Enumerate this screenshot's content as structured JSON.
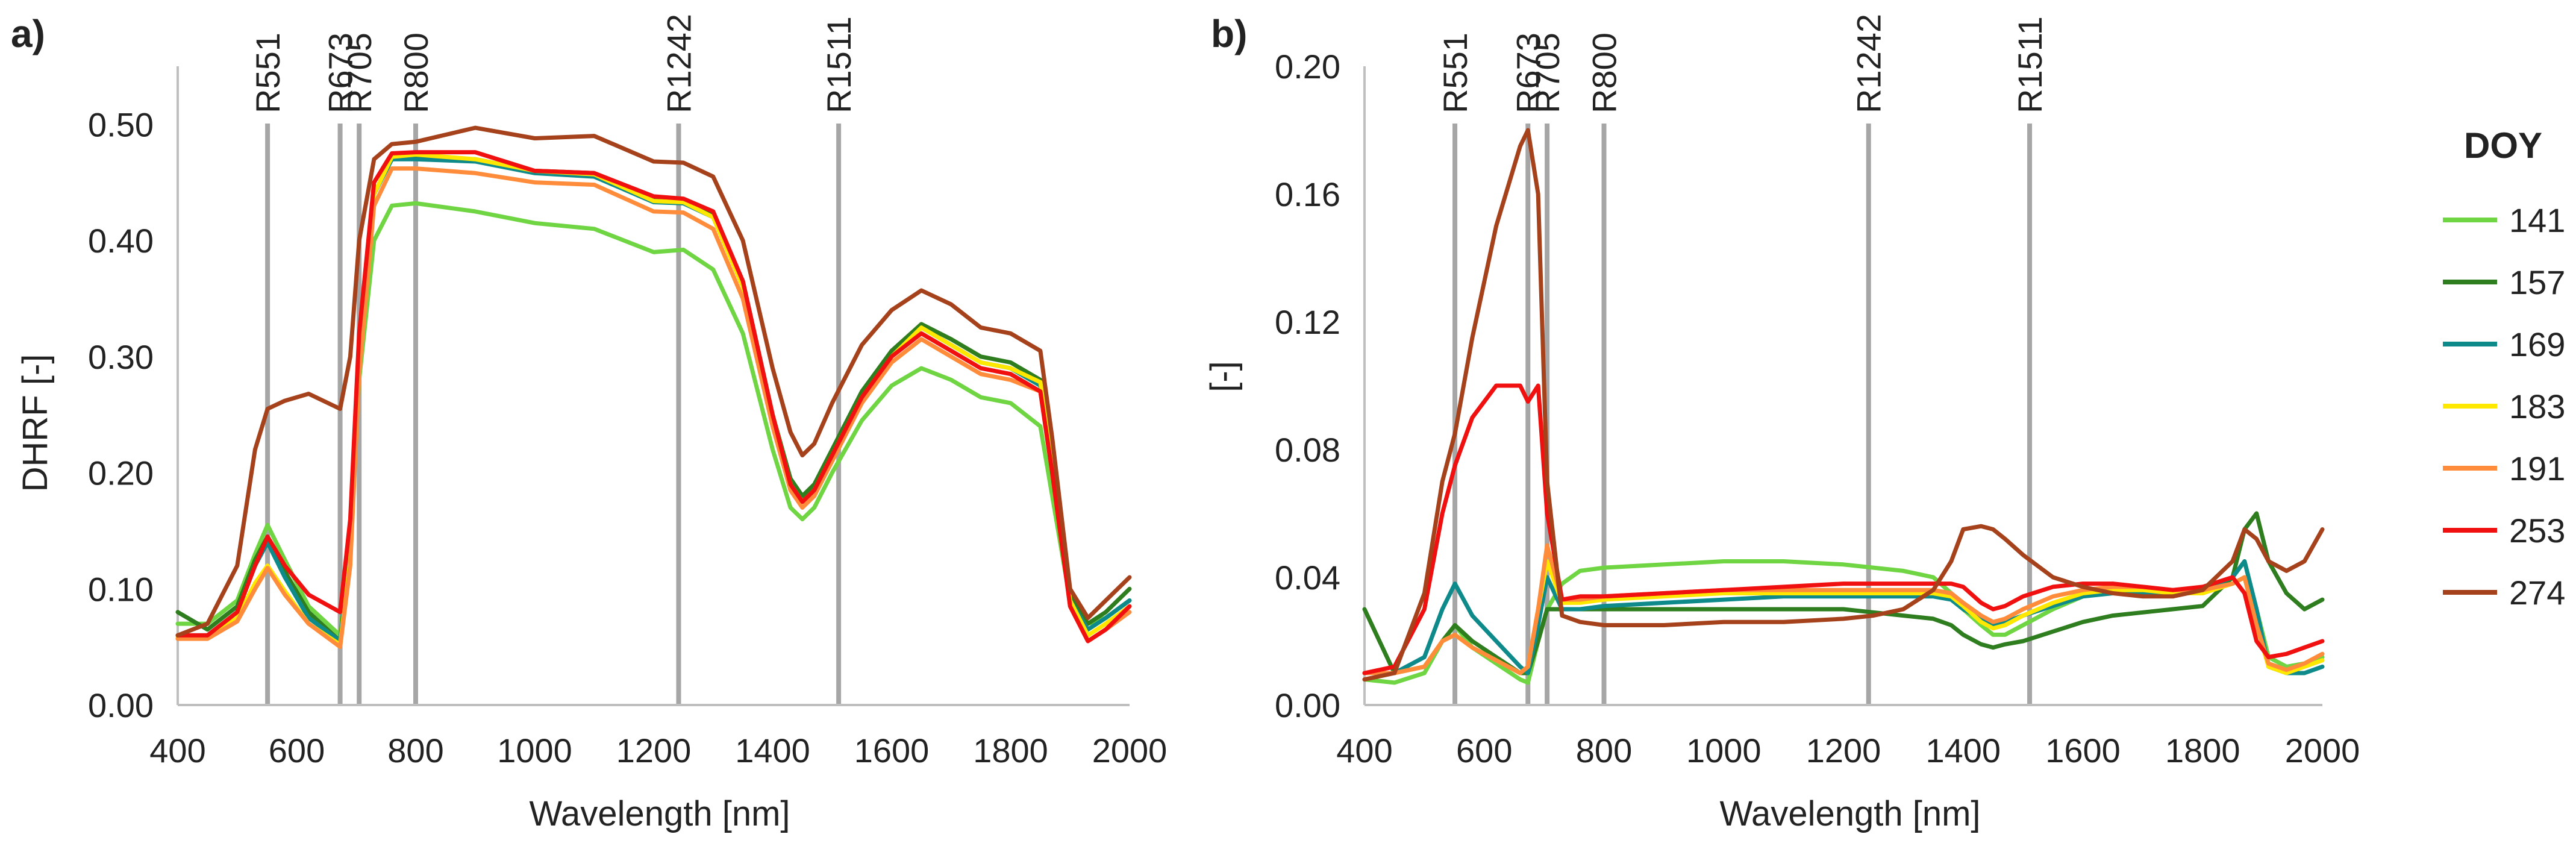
{
  "chart_data": [
    {
      "panel_label": "a)",
      "type": "line",
      "xlabel": "Wavelength [nm]",
      "ylabel": "DHRF [-]",
      "xlim": [
        400,
        2000
      ],
      "ylim": [
        0,
        0.55
      ],
      "x_ticks": [
        "400",
        "600",
        "800",
        "1000",
        "1200",
        "1400",
        "1600",
        "1800",
        "2000"
      ],
      "y_ticks": [
        "0.00",
        "0.10",
        "0.20",
        "0.30",
        "0.40",
        "0.50"
      ],
      "y_tick_values": [
        0,
        0.1,
        0.2,
        0.3,
        0.4,
        0.5
      ],
      "bands": [
        {
          "label": "R551",
          "wavelength": 551
        },
        {
          "label": "R673",
          "wavelength": 673
        },
        {
          "label": "R705",
          "wavelength": 705
        },
        {
          "label": "R800",
          "wavelength": 800
        },
        {
          "label": "R1242",
          "wavelength": 1242
        },
        {
          "label": "R1511",
          "wavelength": 1511
        }
      ],
      "x": [
        400,
        450,
        500,
        530,
        551,
        580,
        620,
        673,
        690,
        705,
        730,
        760,
        800,
        900,
        1000,
        1100,
        1200,
        1250,
        1300,
        1350,
        1400,
        1430,
        1450,
        1470,
        1500,
        1550,
        1600,
        1650,
        1700,
        1750,
        1800,
        1850,
        1870,
        1900,
        1930,
        1960,
        2000
      ],
      "series": [
        {
          "name": "141",
          "color": "#6FD542",
          "values": [
            0.07,
            0.07,
            0.09,
            0.13,
            0.155,
            0.125,
            0.085,
            0.06,
            0.14,
            0.28,
            0.4,
            0.43,
            0.432,
            0.425,
            0.415,
            0.41,
            0.39,
            0.392,
            0.375,
            0.32,
            0.22,
            0.17,
            0.16,
            0.17,
            0.2,
            0.245,
            0.275,
            0.29,
            0.28,
            0.265,
            0.26,
            0.24,
            0.18,
            0.09,
            0.07,
            0.075,
            0.09
          ]
        },
        {
          "name": "157",
          "color": "#2E7D1E",
          "values": [
            0.08,
            0.065,
            0.085,
            0.125,
            0.145,
            0.115,
            0.08,
            0.055,
            0.14,
            0.3,
            0.44,
            0.47,
            0.471,
            0.47,
            0.46,
            0.458,
            0.436,
            0.434,
            0.422,
            0.365,
            0.25,
            0.195,
            0.18,
            0.19,
            0.22,
            0.27,
            0.305,
            0.328,
            0.315,
            0.3,
            0.295,
            0.28,
            0.21,
            0.095,
            0.07,
            0.08,
            0.1
          ]
        },
        {
          "name": "169",
          "color": "#0E8A8A",
          "values": [
            0.06,
            0.06,
            0.08,
            0.12,
            0.14,
            0.11,
            0.075,
            0.055,
            0.13,
            0.29,
            0.44,
            0.47,
            0.47,
            0.468,
            0.458,
            0.455,
            0.433,
            0.432,
            0.42,
            0.36,
            0.25,
            0.19,
            0.175,
            0.185,
            0.215,
            0.265,
            0.3,
            0.325,
            0.31,
            0.295,
            0.29,
            0.275,
            0.205,
            0.09,
            0.065,
            0.075,
            0.09
          ]
        },
        {
          "name": "183",
          "color": "#FFE800",
          "values": [
            0.058,
            0.058,
            0.075,
            0.105,
            0.12,
            0.098,
            0.07,
            0.052,
            0.125,
            0.29,
            0.44,
            0.472,
            0.474,
            0.47,
            0.46,
            0.457,
            0.434,
            0.433,
            0.42,
            0.36,
            0.25,
            0.19,
            0.175,
            0.185,
            0.215,
            0.265,
            0.3,
            0.325,
            0.31,
            0.295,
            0.29,
            0.278,
            0.21,
            0.09,
            0.06,
            0.07,
            0.085
          ]
        },
        {
          "name": "191",
          "color": "#FF8C3A",
          "values": [
            0.057,
            0.057,
            0.072,
            0.1,
            0.118,
            0.095,
            0.07,
            0.05,
            0.12,
            0.285,
            0.43,
            0.462,
            0.462,
            0.458,
            0.45,
            0.448,
            0.425,
            0.424,
            0.41,
            0.35,
            0.24,
            0.185,
            0.17,
            0.18,
            0.21,
            0.26,
            0.295,
            0.315,
            0.3,
            0.285,
            0.28,
            0.27,
            0.2,
            0.085,
            0.055,
            0.065,
            0.08
          ]
        },
        {
          "name": "253",
          "color": "#F01010",
          "values": [
            0.06,
            0.06,
            0.08,
            0.12,
            0.145,
            0.12,
            0.095,
            0.08,
            0.16,
            0.32,
            0.45,
            0.475,
            0.476,
            0.476,
            0.46,
            0.458,
            0.438,
            0.436,
            0.425,
            0.365,
            0.25,
            0.19,
            0.175,
            0.185,
            0.215,
            0.265,
            0.3,
            0.32,
            0.305,
            0.29,
            0.285,
            0.27,
            0.2,
            0.085,
            0.055,
            0.065,
            0.085
          ]
        },
        {
          "name": "274",
          "color": "#A5421C",
          "values": [
            0.06,
            0.07,
            0.12,
            0.22,
            0.255,
            0.262,
            0.268,
            0.255,
            0.3,
            0.4,
            0.47,
            0.483,
            0.485,
            0.497,
            0.488,
            0.49,
            0.468,
            0.467,
            0.455,
            0.4,
            0.29,
            0.235,
            0.215,
            0.225,
            0.26,
            0.31,
            0.34,
            0.357,
            0.345,
            0.325,
            0.32,
            0.305,
            0.23,
            0.1,
            0.075,
            0.09,
            0.11
          ]
        }
      ]
    },
    {
      "panel_label": "b)",
      "type": "line",
      "xlabel": "Wavelength [nm]",
      "ylabel": "[-]",
      "xlim": [
        400,
        2000
      ],
      "ylim": [
        0,
        0.2
      ],
      "x_ticks": [
        "400",
        "600",
        "800",
        "1000",
        "1200",
        "1400",
        "1600",
        "1800",
        "2000"
      ],
      "y_ticks": [
        "0.00",
        "0.04",
        "0.08",
        "0.12",
        "0.16",
        "0.20"
      ],
      "y_tick_values": [
        0,
        0.04,
        0.08,
        0.12,
        0.16,
        0.2
      ],
      "bands": [
        {
          "label": "R551",
          "wavelength": 551
        },
        {
          "label": "R673",
          "wavelength": 673
        },
        {
          "label": "R705",
          "wavelength": 705
        },
        {
          "label": "R800",
          "wavelength": 800
        },
        {
          "label": "R1242",
          "wavelength": 1242
        },
        {
          "label": "R1511",
          "wavelength": 1511
        }
      ],
      "x": [
        400,
        450,
        500,
        530,
        551,
        580,
        620,
        660,
        673,
        690,
        705,
        730,
        760,
        800,
        900,
        1000,
        1100,
        1200,
        1250,
        1300,
        1350,
        1380,
        1400,
        1430,
        1450,
        1470,
        1500,
        1550,
        1600,
        1650,
        1700,
        1750,
        1800,
        1850,
        1870,
        1890,
        1910,
        1940,
        1970,
        2000
      ],
      "series": [
        {
          "name": "141",
          "color": "#6FD542",
          "values": [
            0.008,
            0.007,
            0.01,
            0.02,
            0.025,
            0.018,
            0.013,
            0.008,
            0.007,
            0.02,
            0.03,
            0.038,
            0.042,
            0.043,
            0.044,
            0.045,
            0.045,
            0.044,
            0.043,
            0.042,
            0.04,
            0.035,
            0.03,
            0.025,
            0.022,
            0.022,
            0.025,
            0.03,
            0.034,
            0.036,
            0.036,
            0.035,
            0.035,
            0.04,
            0.045,
            0.03,
            0.015,
            0.012,
            0.013,
            0.015
          ]
        },
        {
          "name": "157",
          "color": "#2E7D1E",
          "values": [
            0.03,
            0.01,
            0.012,
            0.02,
            0.025,
            0.02,
            0.015,
            0.01,
            0.01,
            0.02,
            0.03,
            0.03,
            0.03,
            0.03,
            0.03,
            0.03,
            0.03,
            0.03,
            0.029,
            0.028,
            0.027,
            0.025,
            0.022,
            0.019,
            0.018,
            0.019,
            0.02,
            0.023,
            0.026,
            0.028,
            0.029,
            0.03,
            0.031,
            0.04,
            0.055,
            0.06,
            0.045,
            0.035,
            0.03,
            0.033
          ]
        },
        {
          "name": "169",
          "color": "#0E8A8A",
          "values": [
            0.01,
            0.01,
            0.015,
            0.03,
            0.038,
            0.028,
            0.02,
            0.012,
            0.01,
            0.025,
            0.04,
            0.03,
            0.03,
            0.031,
            0.032,
            0.033,
            0.034,
            0.034,
            0.034,
            0.034,
            0.034,
            0.033,
            0.03,
            0.027,
            0.025,
            0.026,
            0.028,
            0.031,
            0.034,
            0.035,
            0.035,
            0.035,
            0.036,
            0.04,
            0.045,
            0.03,
            0.012,
            0.01,
            0.01,
            0.012
          ]
        },
        {
          "name": "183",
          "color": "#FFE800",
          "values": [
            0.01,
            0.01,
            0.012,
            0.02,
            0.022,
            0.018,
            0.014,
            0.01,
            0.012,
            0.03,
            0.045,
            0.032,
            0.032,
            0.033,
            0.034,
            0.035,
            0.035,
            0.035,
            0.035,
            0.035,
            0.035,
            0.034,
            0.031,
            0.026,
            0.024,
            0.025,
            0.028,
            0.032,
            0.035,
            0.036,
            0.036,
            0.035,
            0.035,
            0.038,
            0.04,
            0.025,
            0.012,
            0.01,
            0.012,
            0.014
          ]
        },
        {
          "name": "191",
          "color": "#FF8C3A",
          "values": [
            0.01,
            0.01,
            0.012,
            0.02,
            0.022,
            0.018,
            0.014,
            0.01,
            0.012,
            0.03,
            0.05,
            0.033,
            0.033,
            0.034,
            0.035,
            0.036,
            0.036,
            0.036,
            0.036,
            0.036,
            0.036,
            0.035,
            0.032,
            0.028,
            0.026,
            0.027,
            0.03,
            0.034,
            0.036,
            0.037,
            0.037,
            0.036,
            0.036,
            0.038,
            0.04,
            0.025,
            0.013,
            0.011,
            0.013,
            0.016
          ]
        },
        {
          "name": "253",
          "color": "#F01010",
          "values": [
            0.01,
            0.012,
            0.03,
            0.06,
            0.075,
            0.09,
            0.1,
            0.1,
            0.095,
            0.1,
            0.06,
            0.033,
            0.034,
            0.034,
            0.035,
            0.036,
            0.037,
            0.038,
            0.038,
            0.038,
            0.038,
            0.038,
            0.037,
            0.032,
            0.03,
            0.031,
            0.034,
            0.037,
            0.038,
            0.038,
            0.037,
            0.036,
            0.037,
            0.04,
            0.035,
            0.02,
            0.015,
            0.016,
            0.018,
            0.02
          ]
        },
        {
          "name": "274",
          "color": "#A5421C",
          "values": [
            0.008,
            0.01,
            0.035,
            0.07,
            0.085,
            0.115,
            0.15,
            0.175,
            0.18,
            0.16,
            0.07,
            0.028,
            0.026,
            0.025,
            0.025,
            0.026,
            0.026,
            0.027,
            0.028,
            0.03,
            0.036,
            0.045,
            0.055,
            0.056,
            0.055,
            0.052,
            0.047,
            0.04,
            0.037,
            0.035,
            0.034,
            0.034,
            0.036,
            0.045,
            0.055,
            0.052,
            0.045,
            0.042,
            0.045,
            0.055
          ]
        }
      ]
    }
  ],
  "legend": {
    "title": "DOY",
    "entries": [
      {
        "label": "141",
        "color": "#6FD542"
      },
      {
        "label": "157",
        "color": "#2E7D1E"
      },
      {
        "label": "169",
        "color": "#0E8A8A"
      },
      {
        "label": "183",
        "color": "#FFE800"
      },
      {
        "label": "191",
        "color": "#FF8C3A"
      },
      {
        "label": "253",
        "color": "#F01010"
      },
      {
        "label": "274",
        "color": "#A5421C"
      }
    ]
  },
  "colors": {
    "axis": "#BFBFBF",
    "band_line": "#A6A6A6",
    "text": "#222222"
  }
}
